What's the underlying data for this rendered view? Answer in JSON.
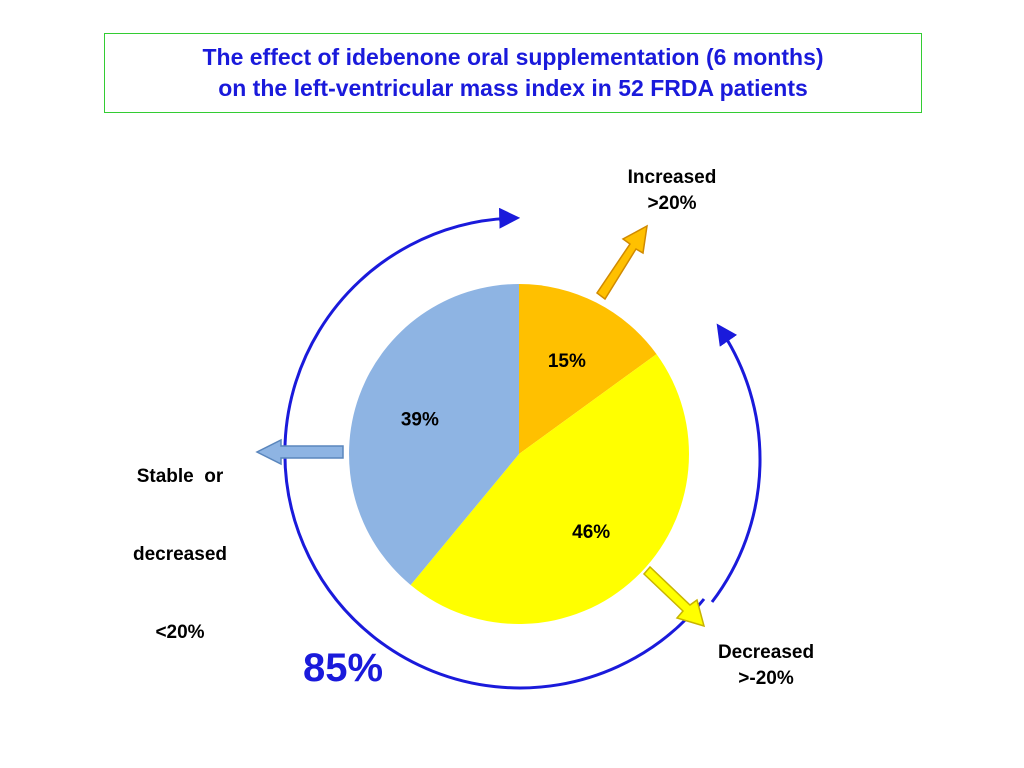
{
  "title": {
    "line1": "The effect of idebenone oral supplementation (6 months)",
    "line2": "on the left-ventricular mass index in 52 FRDA patients"
  },
  "colors": {
    "title_text": "#1a1adb",
    "title_border": "#33cc33",
    "arc": "#1a1adb"
  },
  "chart_data": {
    "type": "pie",
    "slices": [
      {
        "label": "15%",
        "value": 15,
        "color": "#ffc000"
      },
      {
        "label": "46%",
        "value": 46,
        "color": "#ffff00"
      },
      {
        "label": "39%",
        "value": 39,
        "color": "#8eb4e3"
      }
    ],
    "annotations": {
      "increased": {
        "line1": "Increased",
        "line2": ">20%"
      },
      "decreased": {
        "line1": "Decreased",
        "line2": ">-20%"
      },
      "stable": {
        "line1": "Stable  or",
        "line2": "decreased",
        "line3": "<20%"
      },
      "combined": "85%"
    }
  }
}
